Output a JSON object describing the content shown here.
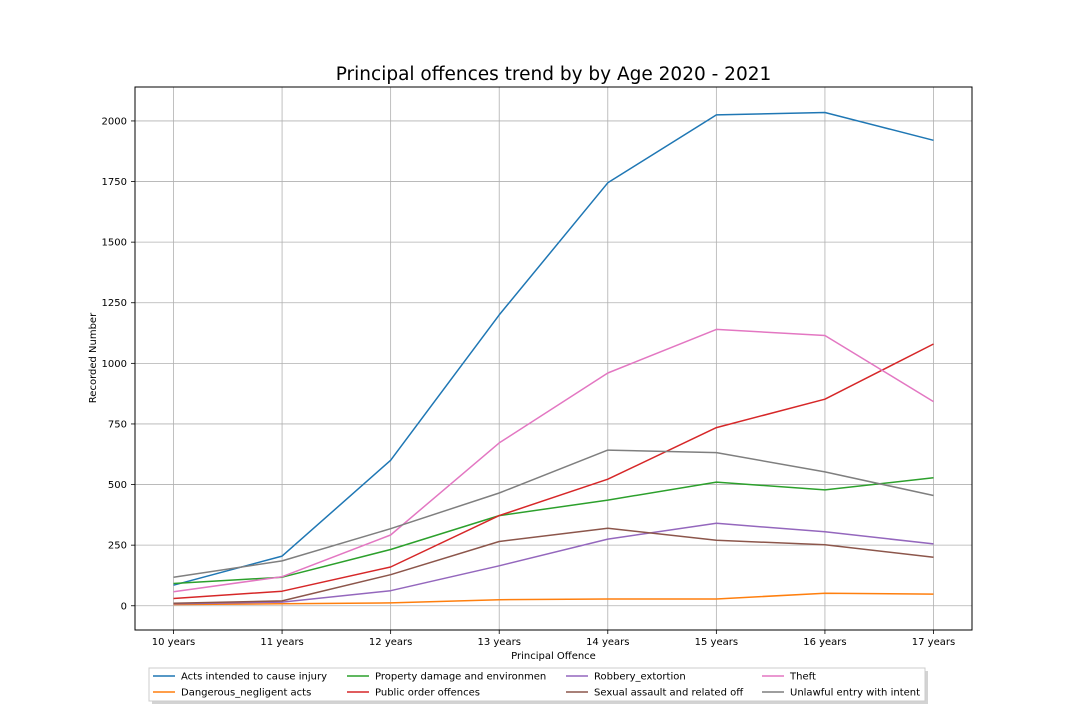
{
  "chart_data": {
    "type": "line",
    "title": "Principal offences trend by by Age 2020 - 2021",
    "xlabel": "Principal Offence",
    "ylabel": "Recorded Number",
    "categories": [
      "10 years",
      "11 years",
      "12 years",
      "13 years",
      "14 years",
      "15 years",
      "16 years",
      "17 years"
    ],
    "ylim": [
      -100,
      2140
    ],
    "yticks": [
      0,
      250,
      500,
      750,
      1000,
      1250,
      1500,
      1750,
      2000
    ],
    "grid": true,
    "legend_position": "bottom-center",
    "series": [
      {
        "name": "Acts intended to cause injury",
        "color": "#1f77b4",
        "values": [
          85,
          205,
          600,
          1200,
          1745,
          2025,
          2035,
          1920
        ]
      },
      {
        "name": "Dangerous_negligent acts",
        "color": "#ff7f0e",
        "values": [
          5,
          8,
          12,
          25,
          28,
          28,
          52,
          48
        ]
      },
      {
        "name": "Property damage and environmen",
        "color": "#2ca02c",
        "values": [
          92,
          118,
          232,
          372,
          436,
          510,
          478,
          528
        ]
      },
      {
        "name": "Public order offences",
        "color": "#d62728",
        "values": [
          30,
          60,
          160,
          372,
          522,
          735,
          852,
          1080
        ]
      },
      {
        "name": "Robbery_extortion",
        "color": "#9467bd",
        "values": [
          8,
          15,
          62,
          165,
          275,
          340,
          305,
          255
        ]
      },
      {
        "name": "Sexual assault and related off",
        "color": "#8c564b",
        "values": [
          10,
          20,
          128,
          265,
          320,
          270,
          252,
          200
        ]
      },
      {
        "name": "Theft",
        "color": "#e377c2",
        "values": [
          58,
          120,
          292,
          672,
          960,
          1140,
          1115,
          842
        ]
      },
      {
        "name": "Unlawful entry with intent",
        "color": "#7f7f7f",
        "values": [
          118,
          185,
          318,
          465,
          642,
          632,
          552,
          455
        ]
      }
    ]
  }
}
